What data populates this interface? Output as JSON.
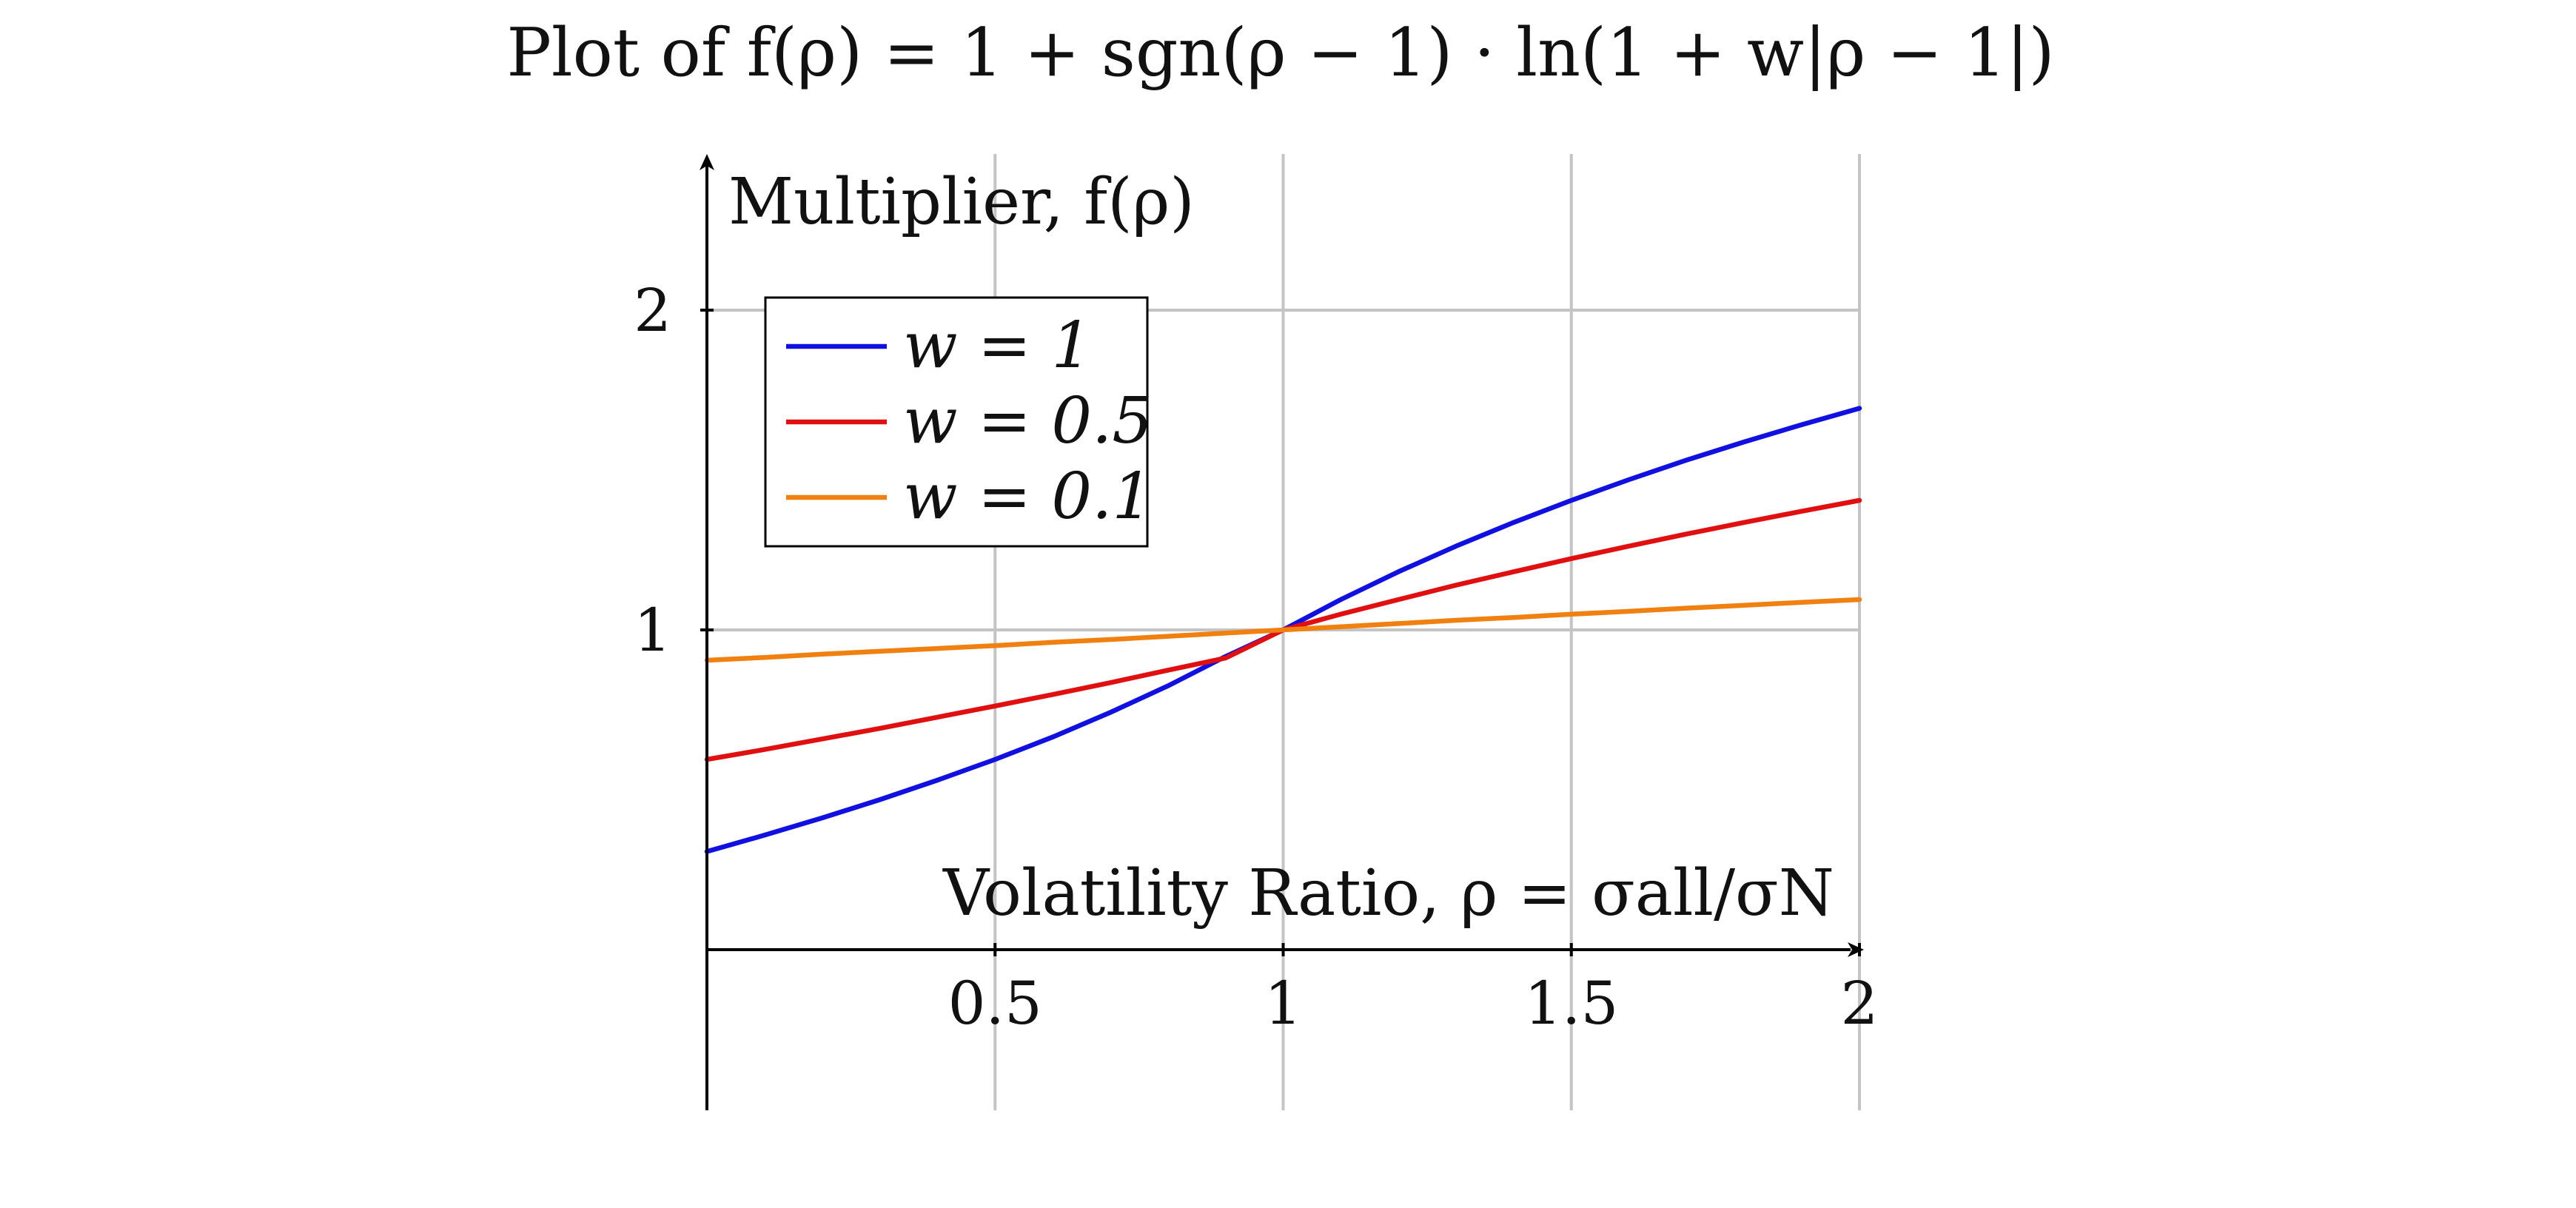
{
  "chart_data": {
    "type": "line",
    "title": "Plot of f(ρ) = 1 + sgn(ρ − 1) · ln(1 + w|ρ − 1|)",
    "xlabel": "Volatility Ratio, ρ = σall/σN",
    "ylabel": "Multiplier, f(ρ)",
    "xlim": [
      0,
      2
    ],
    "ylim": [
      0,
      2.5
    ],
    "x_ticks": [
      0.5,
      1,
      1.5,
      2
    ],
    "x_tick_labels": [
      "0.5",
      "1",
      "1.5",
      "2"
    ],
    "y_ticks": [
      1,
      2
    ],
    "y_tick_labels": [
      "1",
      "2"
    ],
    "grid": true,
    "legend_position": "top-left",
    "x": [
      0,
      0.1,
      0.2,
      0.3,
      0.4,
      0.5,
      0.6,
      0.7,
      0.8,
      0.9,
      1.0,
      1.1,
      1.2,
      1.3,
      1.4,
      1.5,
      1.6,
      1.7,
      1.8,
      1.9,
      2.0
    ],
    "series": [
      {
        "name": "w = 1",
        "color": "#1010e0",
        "values": [
          0.307,
          0.358,
          0.412,
          0.469,
          0.53,
          0.595,
          0.665,
          0.742,
          0.825,
          0.917,
          1.0,
          1.095,
          1.182,
          1.262,
          1.336,
          1.405,
          1.47,
          1.531,
          1.588,
          1.642,
          1.693
        ]
      },
      {
        "name": "w = 0.5",
        "color": "#e01010",
        "values": [
          0.595,
          0.626,
          0.659,
          0.692,
          0.727,
          0.762,
          0.798,
          0.835,
          0.874,
          0.912,
          1.0,
          1.049,
          1.095,
          1.14,
          1.182,
          1.223,
          1.262,
          1.3,
          1.336,
          1.371,
          1.405
        ]
      },
      {
        "name": "w = 0.1",
        "color": "#f08010",
        "values": [
          0.905,
          0.914,
          0.924,
          0.933,
          0.942,
          0.951,
          0.961,
          0.97,
          0.98,
          0.99,
          1.0,
          1.01,
          1.02,
          1.03,
          1.039,
          1.049,
          1.058,
          1.068,
          1.077,
          1.086,
          1.095
        ]
      }
    ]
  }
}
